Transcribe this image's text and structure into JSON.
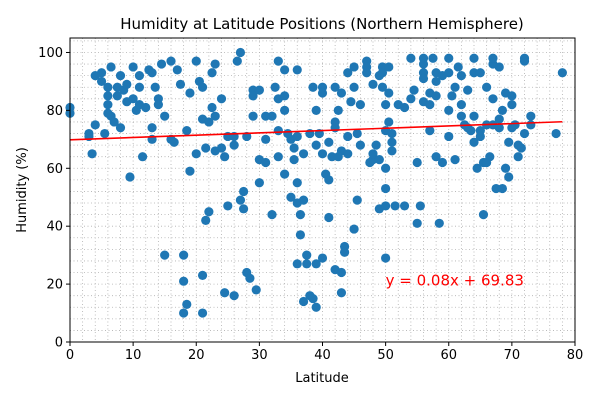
{
  "chart_data": {
    "type": "scatter",
    "title": "Humidity at Latitude Positions (Northern Hemisphere)",
    "xlabel": "Latitude",
    "ylabel": "Humidity (%)",
    "xlim": [
      0,
      80
    ],
    "ylim": [
      0,
      105
    ],
    "xticks": [
      0,
      10,
      20,
      30,
      40,
      50,
      60,
      70,
      80
    ],
    "yticks": [
      0,
      20,
      40,
      60,
      80,
      100
    ],
    "grid": true,
    "grid_style": "dotted",
    "point_color": "#1f77b4",
    "regression": {
      "slope": 0.08,
      "intercept": 69.83,
      "x_range": [
        0,
        78
      ],
      "color": "#ff0000",
      "annotation": "y = 0.08x + 69.83",
      "annotation_x": 50,
      "annotation_y": 19.5
    },
    "points": [
      [
        0,
        79
      ],
      [
        0,
        81
      ],
      [
        3,
        72
      ],
      [
        3,
        71
      ],
      [
        3.5,
        65
      ],
      [
        4,
        92
      ],
      [
        4,
        75
      ],
      [
        5,
        90
      ],
      [
        5,
        93
      ],
      [
        5.5,
        72
      ],
      [
        6,
        88
      ],
      [
        6,
        85
      ],
      [
        6,
        82
      ],
      [
        6,
        79
      ],
      [
        6.5,
        95
      ],
      [
        6.5,
        78
      ],
      [
        7,
        76
      ],
      [
        7.5,
        85
      ],
      [
        7.5,
        88
      ],
      [
        8,
        92
      ],
      [
        8,
        74
      ],
      [
        8.5,
        87
      ],
      [
        9,
        89
      ],
      [
        9,
        83
      ],
      [
        9.5,
        57
      ],
      [
        10,
        84
      ],
      [
        10,
        95
      ],
      [
        10.5,
        80
      ],
      [
        11,
        92
      ],
      [
        11,
        88
      ],
      [
        11,
        82
      ],
      [
        11.5,
        64
      ],
      [
        12,
        81
      ],
      [
        12.5,
        94
      ],
      [
        13,
        70
      ],
      [
        13,
        93
      ],
      [
        13,
        74
      ],
      [
        13.5,
        88
      ],
      [
        14,
        84
      ],
      [
        14,
        82
      ],
      [
        14.5,
        96
      ],
      [
        15,
        78
      ],
      [
        15,
        30
      ],
      [
        16,
        97
      ],
      [
        16,
        70
      ],
      [
        16.5,
        69
      ],
      [
        17,
        94
      ],
      [
        17.5,
        89
      ],
      [
        18,
        21
      ],
      [
        18,
        10
      ],
      [
        18,
        30
      ],
      [
        18.5,
        13
      ],
      [
        18.5,
        73
      ],
      [
        19,
        59
      ],
      [
        19,
        86
      ],
      [
        20,
        65
      ],
      [
        20,
        97
      ],
      [
        20.5,
        90
      ],
      [
        21,
        88
      ],
      [
        21,
        77
      ],
      [
        21,
        23
      ],
      [
        21,
        10
      ],
      [
        21.5,
        67
      ],
      [
        21.5,
        42
      ],
      [
        22,
        45
      ],
      [
        22,
        76
      ],
      [
        22.5,
        93
      ],
      [
        22.5,
        81
      ],
      [
        23,
        66
      ],
      [
        23,
        96
      ],
      [
        23,
        78
      ],
      [
        24,
        67
      ],
      [
        24,
        84
      ],
      [
        24.5,
        17
      ],
      [
        24.5,
        64
      ],
      [
        25,
        71
      ],
      [
        25,
        47
      ],
      [
        26,
        71
      ],
      [
        26,
        68
      ],
      [
        26,
        16
      ],
      [
        26.5,
        97
      ],
      [
        27,
        100
      ],
      [
        27,
        49
      ],
      [
        27.5,
        46
      ],
      [
        27.5,
        52
      ],
      [
        28,
        24
      ],
      [
        28,
        71
      ],
      [
        28.5,
        22
      ],
      [
        29,
        87
      ],
      [
        29,
        85
      ],
      [
        29,
        78
      ],
      [
        29.5,
        18
      ],
      [
        30,
        55
      ],
      [
        30,
        87
      ],
      [
        30,
        63
      ],
      [
        31,
        70
      ],
      [
        31,
        78
      ],
      [
        31,
        62
      ],
      [
        32,
        44
      ],
      [
        32,
        78
      ],
      [
        32.5,
        88
      ],
      [
        33,
        84
      ],
      [
        33,
        73
      ],
      [
        33,
        97
      ],
      [
        33,
        64
      ],
      [
        34,
        85
      ],
      [
        34,
        94
      ],
      [
        34,
        80
      ],
      [
        34,
        58
      ],
      [
        34.5,
        72
      ],
      [
        35,
        50
      ],
      [
        35,
        70
      ],
      [
        35.5,
        67
      ],
      [
        35.5,
        63
      ],
      [
        36,
        94
      ],
      [
        36,
        71
      ],
      [
        36,
        55
      ],
      [
        36,
        48
      ],
      [
        36,
        27
      ],
      [
        36.5,
        37
      ],
      [
        36.5,
        44
      ],
      [
        37,
        14
      ],
      [
        37,
        49
      ],
      [
        37,
        65
      ],
      [
        37.5,
        27
      ],
      [
        37.5,
        30
      ],
      [
        38,
        16
      ],
      [
        38,
        72
      ],
      [
        38.5,
        88
      ],
      [
        38.5,
        15
      ],
      [
        39,
        12
      ],
      [
        39,
        80
      ],
      [
        39,
        68
      ],
      [
        39,
        27
      ],
      [
        39.5,
        72
      ],
      [
        40,
        88
      ],
      [
        40,
        86
      ],
      [
        40,
        29
      ],
      [
        40,
        65
      ],
      [
        40.5,
        58
      ],
      [
        41,
        43
      ],
      [
        41,
        69
      ],
      [
        41,
        56
      ],
      [
        41.5,
        64
      ],
      [
        42,
        25
      ],
      [
        42,
        74
      ],
      [
        42,
        88
      ],
      [
        42,
        76
      ],
      [
        42.5,
        64
      ],
      [
        42.5,
        80
      ],
      [
        43,
        24
      ],
      [
        43,
        17
      ],
      [
        43,
        86
      ],
      [
        43,
        66
      ],
      [
        43.5,
        33
      ],
      [
        43.5,
        31
      ],
      [
        44,
        71
      ],
      [
        44,
        93
      ],
      [
        44,
        65
      ],
      [
        44.5,
        83
      ],
      [
        45,
        39
      ],
      [
        45,
        88
      ],
      [
        45,
        95
      ],
      [
        45.5,
        72
      ],
      [
        45.5,
        49
      ],
      [
        46,
        82
      ],
      [
        46,
        68
      ],
      [
        47,
        97
      ],
      [
        47,
        95
      ],
      [
        47,
        93
      ],
      [
        47.5,
        62
      ],
      [
        48,
        89
      ],
      [
        48,
        63
      ],
      [
        48,
        65
      ],
      [
        48.5,
        68
      ],
      [
        49,
        46
      ],
      [
        49,
        63
      ],
      [
        49,
        92
      ],
      [
        49.5,
        95
      ],
      [
        49.5,
        93
      ],
      [
        49.5,
        88
      ],
      [
        50,
        29
      ],
      [
        50,
        53
      ],
      [
        50,
        60
      ],
      [
        50,
        82
      ],
      [
        50,
        73
      ],
      [
        50,
        47
      ],
      [
        50.5,
        95
      ],
      [
        50.5,
        86
      ],
      [
        50.5,
        76
      ],
      [
        51,
        72
      ],
      [
        51,
        69
      ],
      [
        51,
        66
      ],
      [
        51.5,
        47
      ],
      [
        52,
        82
      ],
      [
        53,
        47
      ],
      [
        53,
        81
      ],
      [
        54,
        98
      ],
      [
        54,
        84
      ],
      [
        54.5,
        87
      ],
      [
        55,
        41
      ],
      [
        55,
        62
      ],
      [
        55.5,
        47
      ],
      [
        56,
        98
      ],
      [
        56,
        96
      ],
      [
        56,
        93
      ],
      [
        56,
        91
      ],
      [
        56,
        83
      ],
      [
        57,
        73
      ],
      [
        57,
        82
      ],
      [
        57,
        86
      ],
      [
        57.5,
        98
      ],
      [
        58,
        64
      ],
      [
        58,
        93
      ],
      [
        58,
        90
      ],
      [
        58,
        85
      ],
      [
        58.5,
        41
      ],
      [
        59,
        62
      ],
      [
        59,
        92
      ],
      [
        60,
        71
      ],
      [
        60,
        80
      ],
      [
        60,
        93
      ],
      [
        60,
        98
      ],
      [
        60.5,
        85
      ],
      [
        61,
        63
      ],
      [
        61,
        88
      ],
      [
        61.5,
        95
      ],
      [
        62,
        92
      ],
      [
        62,
        82
      ],
      [
        62,
        78
      ],
      [
        62.5,
        75
      ],
      [
        63,
        74
      ],
      [
        63,
        87
      ],
      [
        63.5,
        73
      ],
      [
        64,
        93
      ],
      [
        64,
        98
      ],
      [
        64,
        78
      ],
      [
        64,
        69
      ],
      [
        64.5,
        60
      ],
      [
        65,
        71
      ],
      [
        65,
        93
      ],
      [
        65,
        73
      ],
      [
        65.5,
        44
      ],
      [
        65.5,
        62
      ],
      [
        66,
        88
      ],
      [
        66,
        62
      ],
      [
        66,
        75
      ],
      [
        66.5,
        64
      ],
      [
        67,
        96
      ],
      [
        67,
        98
      ],
      [
        67,
        75
      ],
      [
        67,
        84
      ],
      [
        67.5,
        53
      ],
      [
        68,
        95
      ],
      [
        68,
        77
      ],
      [
        68,
        74
      ],
      [
        68.5,
        80
      ],
      [
        68.5,
        53
      ],
      [
        69,
        60
      ],
      [
        69,
        86
      ],
      [
        69.5,
        69
      ],
      [
        69.5,
        57
      ],
      [
        70,
        82
      ],
      [
        70,
        85
      ],
      [
        70,
        74
      ],
      [
        70.5,
        75
      ],
      [
        71,
        64
      ],
      [
        71,
        68
      ],
      [
        71.5,
        67
      ],
      [
        72,
        97
      ],
      [
        72,
        98
      ],
      [
        72,
        72
      ],
      [
        73,
        78
      ],
      [
        73,
        75
      ],
      [
        77,
        72
      ],
      [
        78,
        93
      ]
    ]
  }
}
